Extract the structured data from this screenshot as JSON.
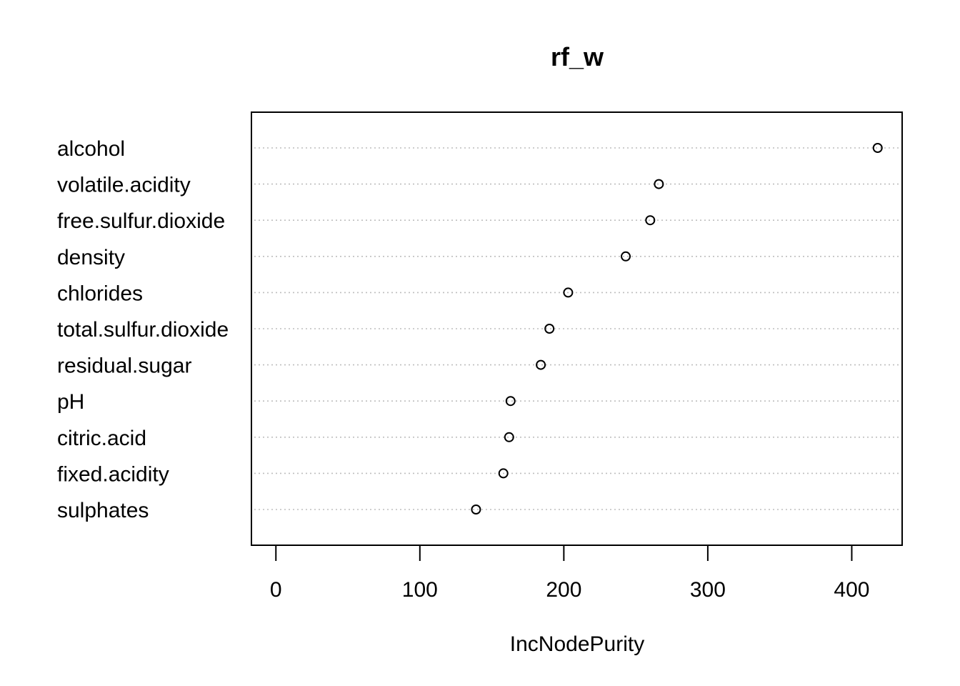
{
  "chart_data": {
    "type": "scatter",
    "title": "rf_w",
    "xlabel": "IncNodePurity",
    "ylabel": "",
    "xlim": [
      -17,
      435
    ],
    "xticks": [
      0,
      100,
      200,
      300,
      400
    ],
    "grid": "dotted horizontal guide lines",
    "marker": "open circle",
    "categories": [
      "alcohol",
      "volatile.acidity",
      "free.sulfur.dioxide",
      "density",
      "chlorides",
      "total.sulfur.dioxide",
      "residual.sugar",
      "pH",
      "citric.acid",
      "fixed.acidity",
      "sulphates"
    ],
    "values": [
      418,
      266,
      260,
      243,
      203,
      190,
      184,
      163,
      162,
      158,
      139
    ]
  },
  "colors": {
    "background": "#ffffff",
    "axis": "#000000",
    "grid": "#bebebe",
    "marker": "#000000"
  }
}
